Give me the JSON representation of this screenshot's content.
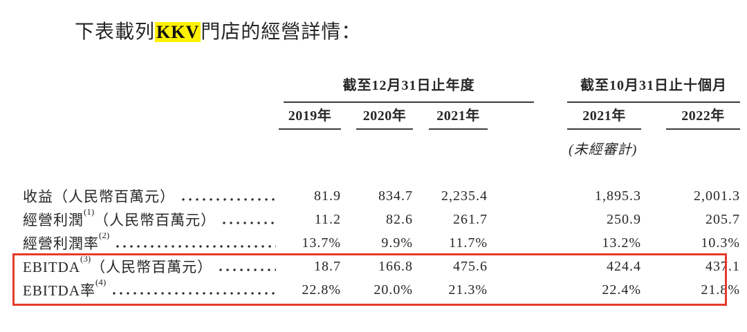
{
  "title": {
    "prefix": "下表載列",
    "highlight": "KKV",
    "suffix": "門店的經營詳情："
  },
  "table": {
    "column_groups": [
      {
        "label": "截至12月31日止年度",
        "years": [
          "2019年",
          "2020年",
          "2021年"
        ]
      },
      {
        "label": "截至10月31日止十個月",
        "years": [
          "2021年",
          "2022年"
        ],
        "note": "(未經審計)"
      }
    ],
    "rows": [
      {
        "label_pre": "收益（人民幣百萬元）",
        "sup": "",
        "label_post": "",
        "values": [
          "81.9",
          "834.7",
          "2,235.4",
          "1,895.3",
          "2,001.3"
        ],
        "emphasized": false
      },
      {
        "label_pre": "經營利潤",
        "sup": "(1)",
        "label_post": "（人民幣百萬元）",
        "values": [
          "11.2",
          "82.6",
          "261.7",
          "250.9",
          "205.7"
        ],
        "emphasized": false
      },
      {
        "label_pre": "經營利潤率",
        "sup": "(2)",
        "label_post": "",
        "values": [
          "13.7%",
          "9.9%",
          "11.7%",
          "13.2%",
          "10.3%"
        ],
        "emphasized": false
      },
      {
        "label_pre": "EBITDA",
        "sup": "(3)",
        "label_post": "（人民幣百萬元）",
        "values": [
          "18.7",
          "166.8",
          "475.6",
          "424.4",
          "437.1"
        ],
        "emphasized": true
      },
      {
        "label_pre": "EBITDA率",
        "sup": "(4)",
        "label_post": "",
        "values": [
          "22.8%",
          "20.0%",
          "21.3%",
          "22.4%",
          "21.8%"
        ],
        "emphasized": true
      }
    ]
  },
  "colors": {
    "text": "#262626",
    "table_line": "#3a3a3a",
    "red_box": "#e6392c",
    "highlight_yellow": "#fff200"
  }
}
